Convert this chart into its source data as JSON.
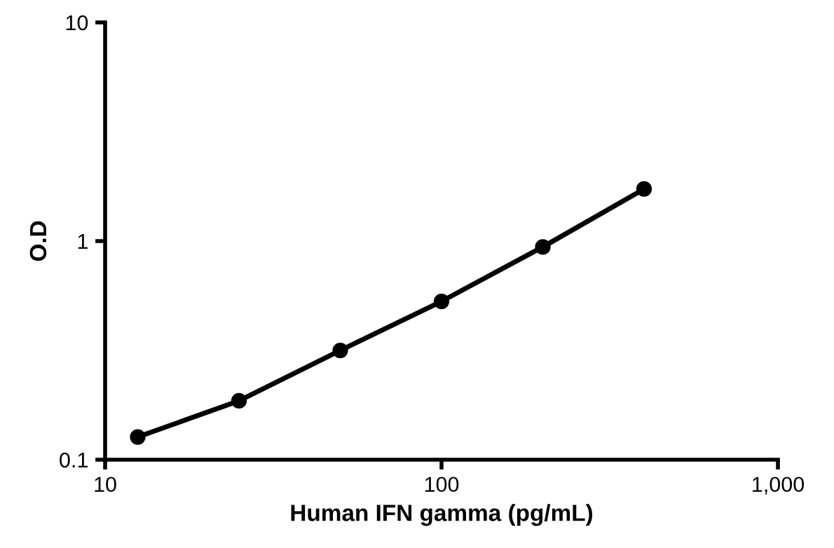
{
  "chart_data": {
    "type": "line",
    "xlabel": "Human IFN gamma (pg/mL)",
    "ylabel": "O.D",
    "log": "xy",
    "x": [
      12.5,
      25,
      50,
      100,
      200,
      400
    ],
    "series": [
      {
        "color": "#000000",
        "values": [
          0.127,
          0.186,
          0.316,
          0.53,
          0.94,
          1.73
        ]
      }
    ],
    "xlim": [
      10,
      1000
    ],
    "xticks": [
      10,
      100,
      {
        "value": 1000,
        "label": "1,000"
      }
    ],
    "ylim": [
      0.1,
      10
    ],
    "yticks": [
      0.1,
      1,
      10
    ],
    "marker": "circle",
    "line_style": "solid",
    "grid": false,
    "legend": false
  }
}
